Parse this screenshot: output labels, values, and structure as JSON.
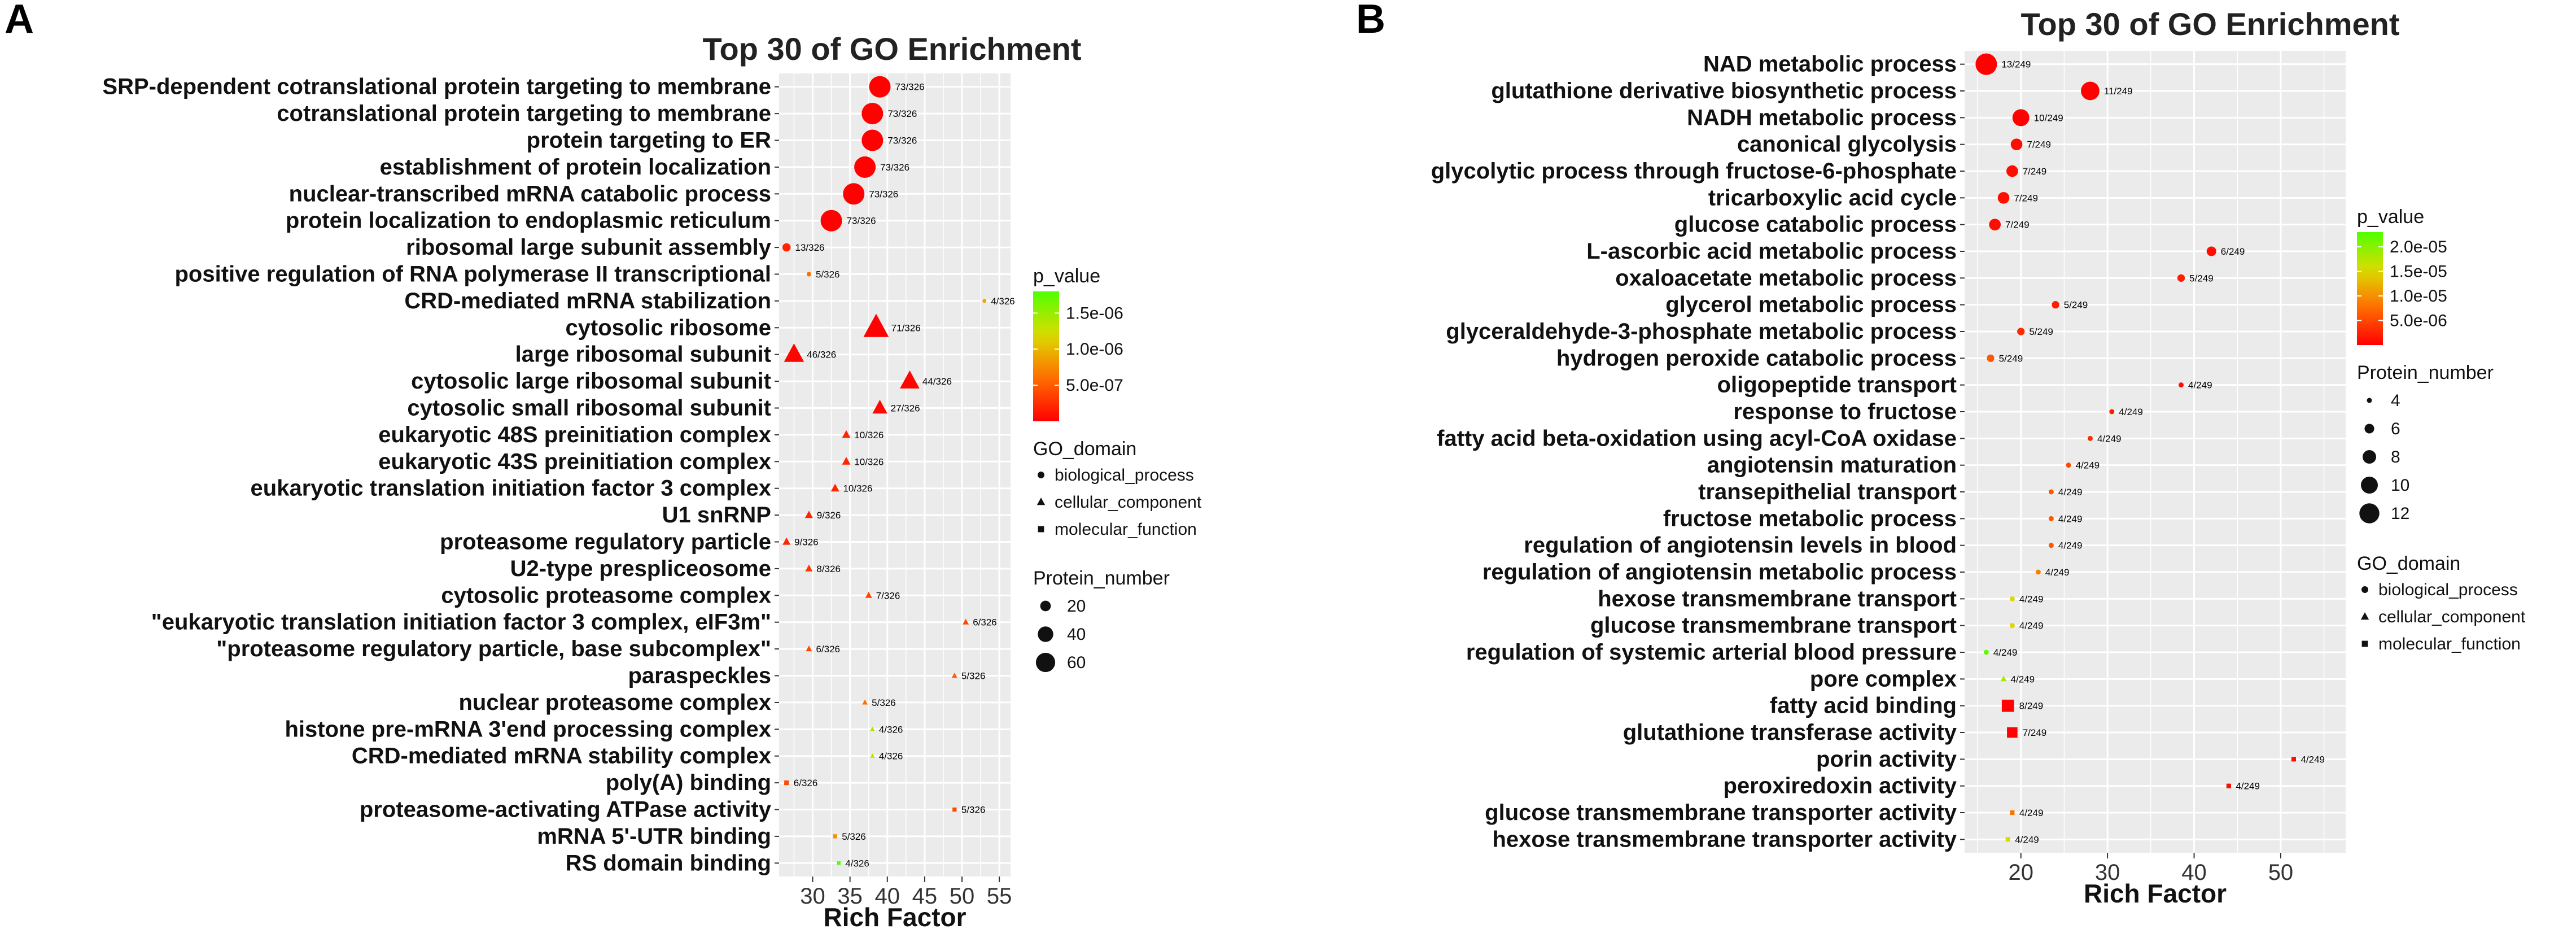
{
  "chart_data": [
    {
      "panel": "A",
      "type": "scatter",
      "title": "Top 30 of GO Enrichment",
      "xlabel": "Rich Factor",
      "ylabel": "",
      "xlim": [
        25.5,
        56.5
      ],
      "xticks": [
        30,
        35,
        40,
        45,
        50,
        55
      ],
      "grid": true,
      "legend_position": "right",
      "legend": {
        "color_title": "p_value",
        "color_ticks": [
          "1.5e-06",
          "1.0e-06",
          "5.0e-07"
        ],
        "color_tick_values": [
          1.5e-06,
          1e-06,
          5e-07
        ],
        "pmax": 1.8e-06,
        "domain_title": "GO_domain",
        "domain_items": [
          {
            "shape": "circle",
            "label": "biological_process"
          },
          {
            "shape": "triangle",
            "label": "cellular_component"
          },
          {
            "shape": "square",
            "label": "molecular_function"
          }
        ],
        "size_title": "Protein_number",
        "size_items": [
          20,
          40,
          60
        ]
      },
      "points": [
        {
          "term": "SRP-dependent cotranslational protein targeting to membrane",
          "x": 39,
          "count": 73,
          "label": "73/326",
          "domain": "biological_process",
          "p": 4e-09
        },
        {
          "term": "cotranslational protein targeting to membrane",
          "x": 38,
          "count": 73,
          "label": "73/326",
          "domain": "biological_process",
          "p": 4e-09
        },
        {
          "term": "protein targeting to ER",
          "x": 38,
          "count": 73,
          "label": "73/326",
          "domain": "biological_process",
          "p": 4e-09
        },
        {
          "term": "establishment of protein localization",
          "x": 37,
          "count": 73,
          "label": "73/326",
          "domain": "biological_process",
          "p": 4e-09
        },
        {
          "term": "nuclear-transcribed mRNA catabolic process",
          "x": 35.5,
          "count": 73,
          "label": "73/326",
          "domain": "biological_process",
          "p": 4e-09
        },
        {
          "term": "protein localization to endoplasmic reticulum",
          "x": 32.5,
          "count": 73,
          "label": "73/326",
          "domain": "biological_process",
          "p": 4e-09
        },
        {
          "term": "ribosomal large subunit assembly",
          "x": 26.5,
          "count": 13,
          "label": "13/326",
          "domain": "biological_process",
          "p": 2e-07
        },
        {
          "term": "positive regulation of RNA polymerase II transcriptional",
          "x": 29.5,
          "count": 5,
          "label": "5/326",
          "domain": "biological_process",
          "p": 6e-07
        },
        {
          "term": "CRD-mediated mRNA stabilization",
          "x": 53,
          "count": 4,
          "label": "4/326",
          "domain": "biological_process",
          "p": 9e-07
        },
        {
          "term": "cytosolic ribosome",
          "x": 38.5,
          "count": 71,
          "label": "71/326",
          "domain": "cellular_component",
          "p": 4e-09
        },
        {
          "term": "large ribosomal subunit",
          "x": 27.5,
          "count": 46,
          "label": "46/326",
          "domain": "cellular_component",
          "p": 2e-08
        },
        {
          "term": "cytosolic large ribosomal subunit",
          "x": 43,
          "count": 44,
          "label": "44/326",
          "domain": "cellular_component",
          "p": 2e-08
        },
        {
          "term": "cytosolic small ribosomal subunit",
          "x": 39,
          "count": 27,
          "label": "27/326",
          "domain": "cellular_component",
          "p": 5e-08
        },
        {
          "term": "eukaryotic 48S preinitiation complex",
          "x": 34.5,
          "count": 10,
          "label": "10/326",
          "domain": "cellular_component",
          "p": 2e-07
        },
        {
          "term": "eukaryotic 43S preinitiation complex",
          "x": 34.5,
          "count": 10,
          "label": "10/326",
          "domain": "cellular_component",
          "p": 2e-07
        },
        {
          "term": "eukaryotic translation initiation factor 3 complex",
          "x": 33,
          "count": 10,
          "label": "10/326",
          "domain": "cellular_component",
          "p": 2e-07
        },
        {
          "term": "U1 snRNP",
          "x": 29.5,
          "count": 9,
          "label": "9/326",
          "domain": "cellular_component",
          "p": 2e-07
        },
        {
          "term": "proteasome regulatory particle",
          "x": 26.5,
          "count": 9,
          "label": "9/326",
          "domain": "cellular_component",
          "p": 2e-07
        },
        {
          "term": "U2-type prespliceosome",
          "x": 29.5,
          "count": 8,
          "label": "8/326",
          "domain": "cellular_component",
          "p": 3e-07
        },
        {
          "term": "cytosolic proteasome complex",
          "x": 37.5,
          "count": 7,
          "label": "7/326",
          "domain": "cellular_component",
          "p": 4e-07
        },
        {
          "term": "\"eukaryotic translation initiation factor 3 complex, eIF3m\"",
          "x": 50.5,
          "count": 6,
          "label": "6/326",
          "domain": "cellular_component",
          "p": 4e-07
        },
        {
          "term": "\"proteasome regulatory particle, base subcomplex\"",
          "x": 29.5,
          "count": 6,
          "label": "6/326",
          "domain": "cellular_component",
          "p": 4e-07
        },
        {
          "term": "paraspeckles",
          "x": 49,
          "count": 5,
          "label": "5/326",
          "domain": "cellular_component",
          "p": 5e-07
        },
        {
          "term": "nuclear proteasome complex",
          "x": 37,
          "count": 5,
          "label": "5/326",
          "domain": "cellular_component",
          "p": 6e-07
        },
        {
          "term": "histone pre-mRNA 3'end processing complex",
          "x": 38,
          "count": 4,
          "label": "4/326",
          "domain": "cellular_component",
          "p": 1.4e-06
        },
        {
          "term": "CRD-mediated mRNA stability complex",
          "x": 38,
          "count": 4,
          "label": "4/326",
          "domain": "cellular_component",
          "p": 1.4e-06
        },
        {
          "term": "poly(A) binding",
          "x": 26.5,
          "count": 6,
          "label": "6/326",
          "domain": "molecular_function",
          "p": 4e-07
        },
        {
          "term": "proteasome-activating ATPase activity",
          "x": 49,
          "count": 5,
          "label": "5/326",
          "domain": "molecular_function",
          "p": 4e-07
        },
        {
          "term": "mRNA 5'-UTR binding",
          "x": 33,
          "count": 5,
          "label": "5/326",
          "domain": "molecular_function",
          "p": 8e-07
        },
        {
          "term": "RS domain binding",
          "x": 33.5,
          "count": 4,
          "label": "4/326",
          "domain": "molecular_function",
          "p": 1.8e-06
        }
      ]
    },
    {
      "panel": "B",
      "type": "scatter",
      "title": "Top 30 of GO Enrichment",
      "xlabel": "Rich Factor",
      "ylabel": "",
      "xlim": [
        13.5,
        57.5
      ],
      "xticks": [
        20,
        30,
        40,
        50
      ],
      "grid": true,
      "legend_position": "right",
      "legend": {
        "color_title": "p_value",
        "color_ticks": [
          "2.0e-05",
          "1.5e-05",
          "1.0e-05",
          "5.0e-06"
        ],
        "color_tick_values": [
          2e-05,
          1.5e-05,
          1e-05,
          5e-06
        ],
        "pmax": 2.3e-05,
        "size_title": "Protein_number",
        "size_items": [
          4,
          6,
          8,
          10,
          12
        ],
        "domain_title": "GO_domain",
        "domain_items": [
          {
            "shape": "circle",
            "label": "biological_process"
          },
          {
            "shape": "triangle",
            "label": "cellular_component"
          },
          {
            "shape": "square",
            "label": "molecular_function"
          }
        ]
      },
      "points": [
        {
          "term": "NAD metabolic process",
          "x": 16,
          "count": 13,
          "label": "13/249",
          "domain": "biological_process",
          "p": 1e-07
        },
        {
          "term": "glutathione derivative biosynthetic process",
          "x": 28,
          "count": 11,
          "label": "11/249",
          "domain": "biological_process",
          "p": 1e-07
        },
        {
          "term": "NADH metabolic process",
          "x": 20,
          "count": 10,
          "label": "10/249",
          "domain": "biological_process",
          "p": 1e-07
        },
        {
          "term": "canonical glycolysis",
          "x": 19.5,
          "count": 7,
          "label": "7/249",
          "domain": "biological_process",
          "p": 1e-06
        },
        {
          "term": "glycolytic process through fructose-6-phosphate",
          "x": 19,
          "count": 7,
          "label": "7/249",
          "domain": "biological_process",
          "p": 1e-06
        },
        {
          "term": "tricarboxylic acid cycle",
          "x": 18,
          "count": 7,
          "label": "7/249",
          "domain": "biological_process",
          "p": 1e-06
        },
        {
          "term": "glucose catabolic process",
          "x": 17,
          "count": 7,
          "label": "7/249",
          "domain": "biological_process",
          "p": 1e-06
        },
        {
          "term": "L-ascorbic acid metabolic process",
          "x": 42,
          "count": 6,
          "label": "6/249",
          "domain": "biological_process",
          "p": 1e-06
        },
        {
          "term": "oxaloacetate metabolic process",
          "x": 38.5,
          "count": 5,
          "label": "5/249",
          "domain": "biological_process",
          "p": 2e-06
        },
        {
          "term": "glycerol metabolic process",
          "x": 24,
          "count": 5,
          "label": "5/249",
          "domain": "biological_process",
          "p": 2e-06
        },
        {
          "term": "glyceraldehyde-3-phosphate metabolic process",
          "x": 20,
          "count": 5,
          "label": "5/249",
          "domain": "biological_process",
          "p": 3e-06
        },
        {
          "term": "hydrogen peroxide catabolic process",
          "x": 16.5,
          "count": 5,
          "label": "5/249",
          "domain": "biological_process",
          "p": 6e-06
        },
        {
          "term": "oligopeptide transport",
          "x": 38.5,
          "count": 4,
          "label": "4/249",
          "domain": "biological_process",
          "p": 1e-06
        },
        {
          "term": "response to fructose",
          "x": 30.5,
          "count": 4,
          "label": "4/249",
          "domain": "biological_process",
          "p": 2e-06
        },
        {
          "term": "fatty acid beta-oxidation using acyl-CoA oxidase",
          "x": 28,
          "count": 4,
          "label": "4/249",
          "domain": "biological_process",
          "p": 3e-06
        },
        {
          "term": "angiotensin maturation",
          "x": 25.5,
          "count": 4,
          "label": "4/249",
          "domain": "biological_process",
          "p": 5e-06
        },
        {
          "term": "transepithelial transport",
          "x": 23.5,
          "count": 4,
          "label": "4/249",
          "domain": "biological_process",
          "p": 6e-06
        },
        {
          "term": "fructose metabolic process",
          "x": 23.5,
          "count": 4,
          "label": "4/249",
          "domain": "biological_process",
          "p": 6e-06
        },
        {
          "term": "regulation of angiotensin levels in blood",
          "x": 23.5,
          "count": 4,
          "label": "4/249",
          "domain": "biological_process",
          "p": 6e-06
        },
        {
          "term": "regulation of angiotensin metabolic process",
          "x": 22,
          "count": 4,
          "label": "4/249",
          "domain": "biological_process",
          "p": 9e-06
        },
        {
          "term": "hexose transmembrane transport",
          "x": 19,
          "count": 4,
          "label": "4/249",
          "domain": "biological_process",
          "p": 1.5e-05
        },
        {
          "term": "glucose transmembrane transport",
          "x": 19,
          "count": 4,
          "label": "4/249",
          "domain": "biological_process",
          "p": 1.5e-05
        },
        {
          "term": "regulation of systemic arterial blood pressure",
          "x": 16,
          "count": 4,
          "label": "4/249",
          "domain": "biological_process",
          "p": 2.2e-05
        },
        {
          "term": "pore complex",
          "x": 18,
          "count": 4,
          "label": "4/249",
          "domain": "cellular_component",
          "p": 1.8e-05
        },
        {
          "term": "fatty acid binding",
          "x": 18.5,
          "count": 8,
          "label": "8/249",
          "domain": "molecular_function",
          "p": 1e-07
        },
        {
          "term": "glutathione transferase activity",
          "x": 19,
          "count": 7,
          "label": "7/249",
          "domain": "molecular_function",
          "p": 1e-07
        },
        {
          "term": "porin activity",
          "x": 51.5,
          "count": 4,
          "label": "4/249",
          "domain": "molecular_function",
          "p": 1e-06
        },
        {
          "term": "peroxiredoxin activity",
          "x": 44,
          "count": 4,
          "label": "4/249",
          "domain": "molecular_function",
          "p": 1e-06
        },
        {
          "term": "glucose transmembrane transporter activity",
          "x": 19,
          "count": 4,
          "label": "4/249",
          "domain": "molecular_function",
          "p": 8e-06
        },
        {
          "term": "hexose transmembrane transporter activity",
          "x": 18.5,
          "count": 4,
          "label": "4/249",
          "domain": "molecular_function",
          "p": 1.6e-05
        }
      ]
    }
  ]
}
